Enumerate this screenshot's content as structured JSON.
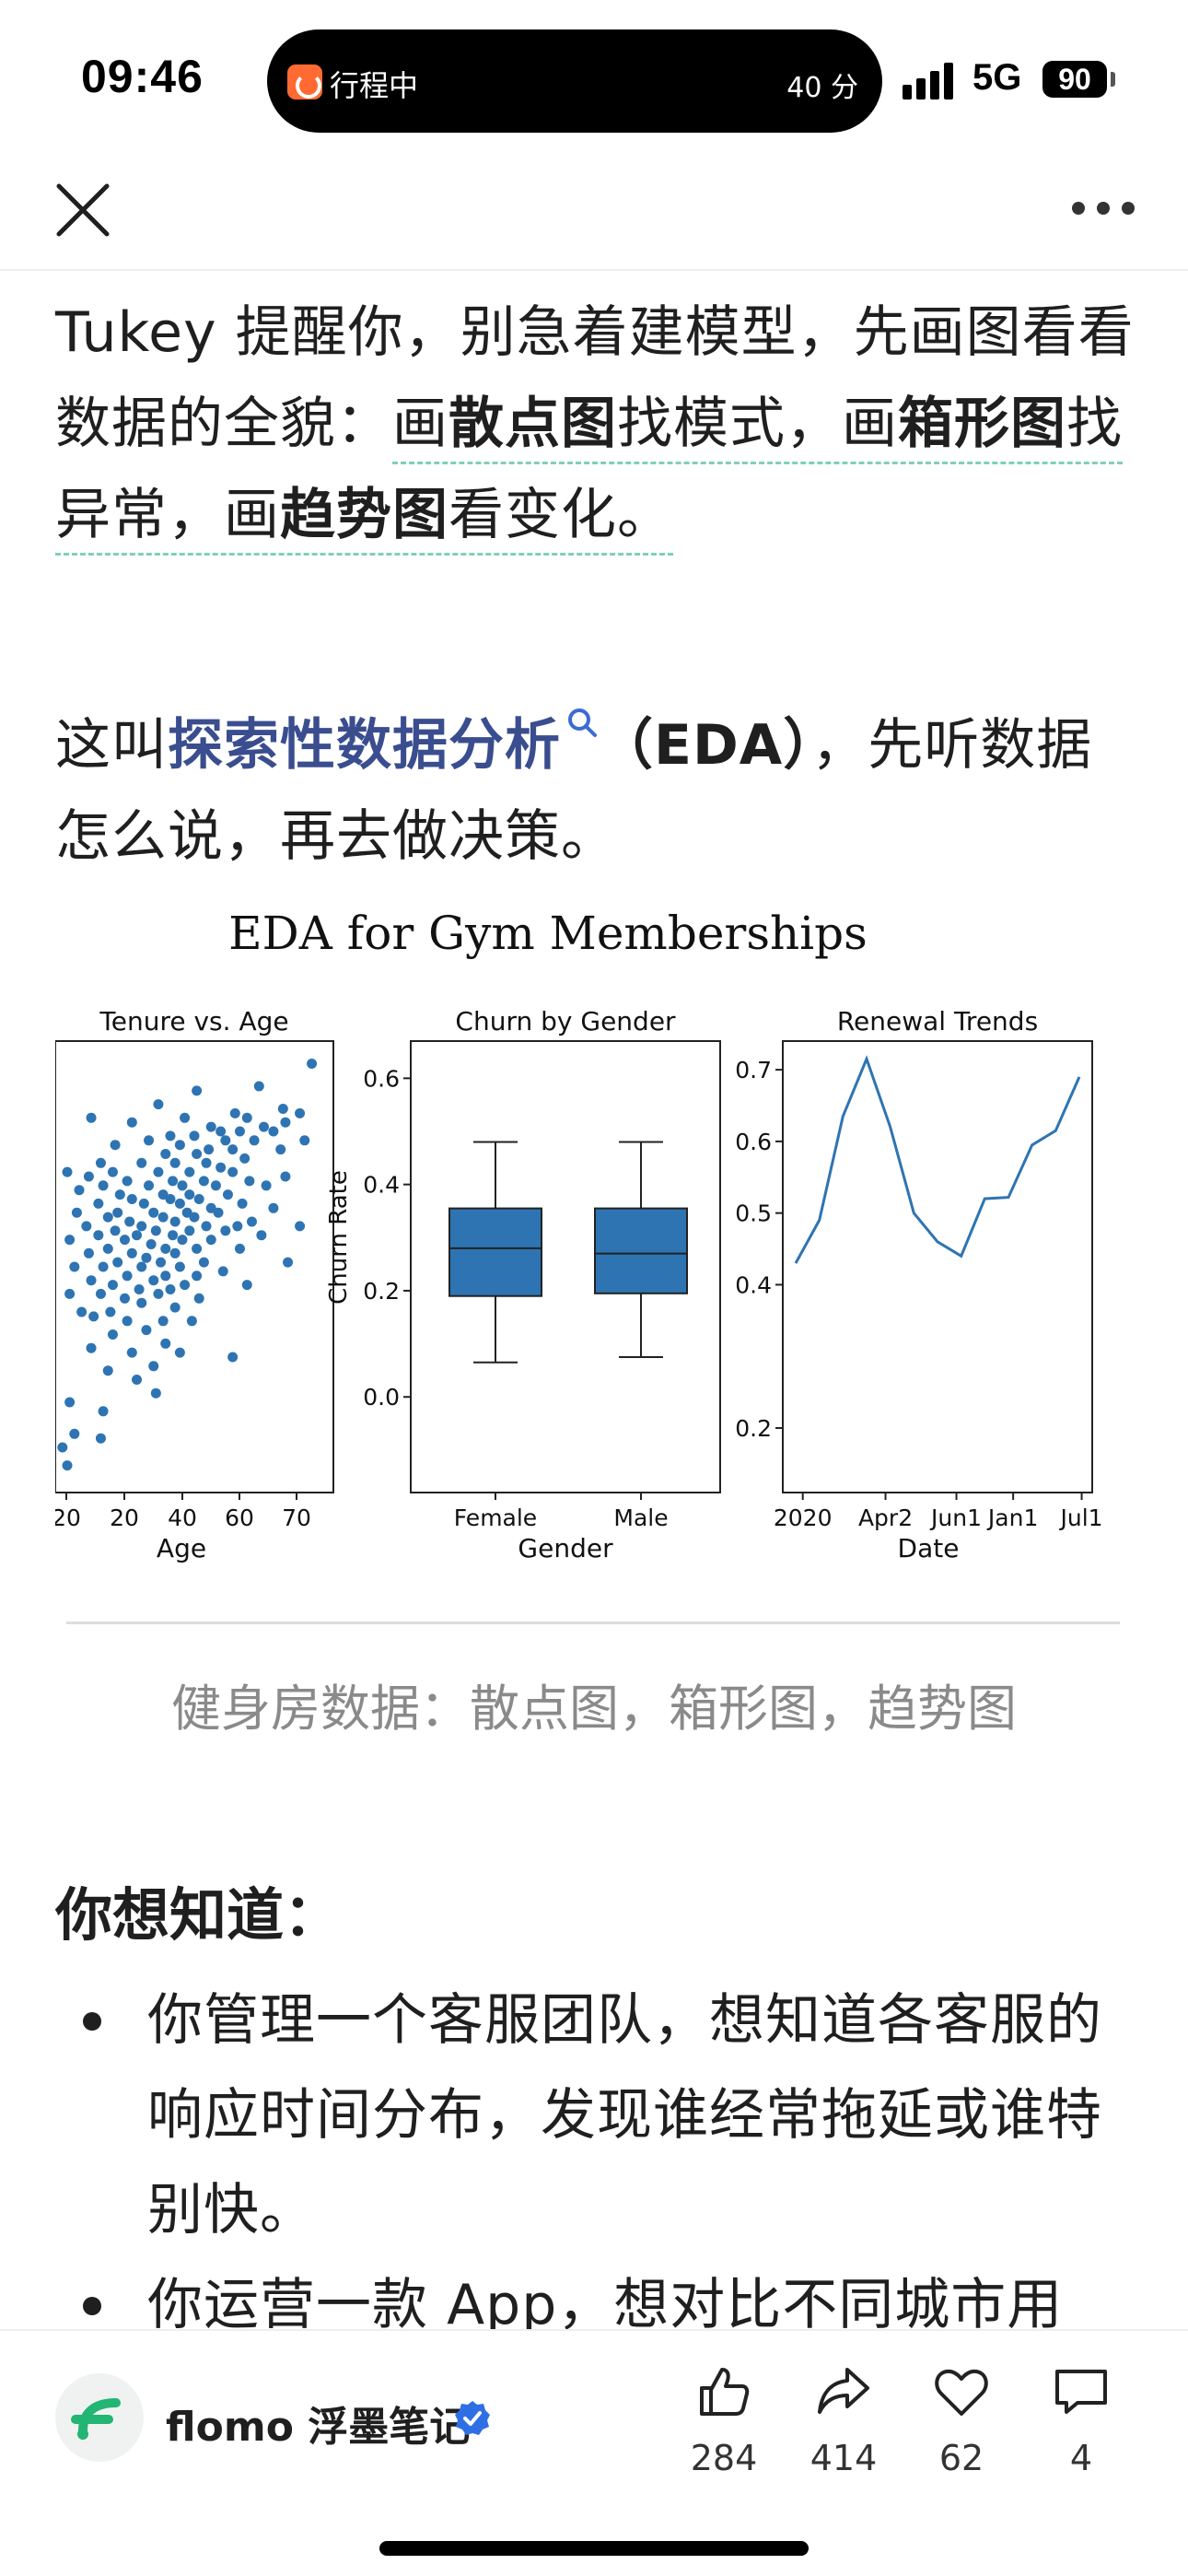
{
  "status_bar": {
    "time": "09:46",
    "island_label": "行程中",
    "island_eta": "40 分",
    "network": "5G",
    "battery": "90"
  },
  "icons": {
    "close": "close-icon",
    "more": "more-icon",
    "search": "search-icon",
    "like": "thumbs-up-icon",
    "share": "share-icon",
    "favorite": "heart-icon",
    "comment": "comment-icon",
    "verified": "verified-badge-icon",
    "brand_logo": "flomo-logo-icon"
  },
  "article": {
    "p1": {
      "t1": "Tukey 提醒你，别急着建模型，先画图看看数据的全貌：",
      "t2": "画",
      "b1": "散点图",
      "t3": "找模式，画",
      "b2": "箱形图",
      "t4": "找异常，画",
      "b3": "趋势图",
      "t5": "看变化。"
    },
    "p2": {
      "t1": "这叫",
      "link": "探索性数据分析",
      "b1": "（EDA）",
      "t2": "，先听数据怎么说，再去做决策。"
    },
    "caption": "健身房数据：散点图，箱形图，趋势图",
    "section_title": "你想知道：",
    "bullets": [
      "你管理一个客服团队，想知道各客服的响应时间分布，发现谁经常拖延或谁特别快。",
      "你运营一款 App，想对比不同城市用"
    ]
  },
  "chart_data": {
    "suptitle": "EDA for Gym Memberships",
    "color": "#2e74b2",
    "panels": [
      {
        "type": "scatter",
        "title": "Tenure vs. Age",
        "xlabel": "Age",
        "ylabel": "",
        "xticks": [
          "20",
          "20",
          "40",
          "60",
          "70"
        ],
        "xlim": [
          18,
          76
        ],
        "ylim": [
          0,
          10
        ],
        "points": [
          [
            71.5,
            9.5
          ],
          [
            60.5,
            9.0
          ],
          [
            47.5,
            8.9
          ],
          [
            39.5,
            8.6
          ],
          [
            65.5,
            8.5
          ],
          [
            69,
            8.4
          ],
          [
            55.5,
            8.4
          ],
          [
            58,
            8.3
          ],
          [
            25.5,
            8.3
          ],
          [
            45,
            8.3
          ],
          [
            66,
            8.2
          ],
          [
            34,
            8.2
          ],
          [
            50.5,
            8.1
          ],
          [
            61.5,
            8.1
          ],
          [
            52.5,
            8.0
          ],
          [
            56.5,
            8.0
          ],
          [
            63.5,
            8.0
          ],
          [
            42,
            7.9
          ],
          [
            47,
            7.9
          ],
          [
            37.5,
            7.8
          ],
          [
            53.5,
            7.8
          ],
          [
            59.5,
            7.8
          ],
          [
            70,
            7.8
          ],
          [
            30.5,
            7.7
          ],
          [
            44,
            7.7
          ],
          [
            50,
            7.6
          ],
          [
            55,
            7.6
          ],
          [
            65,
            7.6
          ],
          [
            41,
            7.5
          ],
          [
            47.5,
            7.5
          ],
          [
            57.5,
            7.4
          ],
          [
            27.5,
            7.3
          ],
          [
            36,
            7.3
          ],
          [
            43,
            7.3
          ],
          [
            49.5,
            7.3
          ],
          [
            52.5,
            7.2
          ],
          [
            20.5,
            7.1
          ],
          [
            30,
            7.1
          ],
          [
            39.5,
            7.1
          ],
          [
            46,
            7.1
          ],
          [
            55,
            7.1
          ],
          [
            66,
            7.0
          ],
          [
            25,
            7.0
          ],
          [
            33,
            6.9
          ],
          [
            42.5,
            6.9
          ],
          [
            49,
            6.9
          ],
          [
            58.5,
            6.9
          ],
          [
            28,
            6.8
          ],
          [
            37.5,
            6.8
          ],
          [
            44.5,
            6.8
          ],
          [
            51.5,
            6.8
          ],
          [
            62,
            6.8
          ],
          [
            23,
            6.7
          ],
          [
            31.5,
            6.6
          ],
          [
            40.5,
            6.6
          ],
          [
            46,
            6.6
          ],
          [
            54,
            6.6
          ],
          [
            34,
            6.5
          ],
          [
            42,
            6.5
          ],
          [
            48,
            6.5
          ],
          [
            57,
            6.4
          ],
          [
            27,
            6.4
          ],
          [
            36.5,
            6.4
          ],
          [
            44,
            6.4
          ],
          [
            50.5,
            6.3
          ],
          [
            63.5,
            6.3
          ],
          [
            22.5,
            6.2
          ],
          [
            31,
            6.2
          ],
          [
            38.5,
            6.2
          ],
          [
            45.5,
            6.2
          ],
          [
            52,
            6.2
          ],
          [
            29,
            6.1
          ],
          [
            40.5,
            6.1
          ],
          [
            47,
            6.1
          ],
          [
            59,
            6.0
          ],
          [
            33.5,
            6.0
          ],
          [
            43,
            6.0
          ],
          [
            56,
            5.9
          ],
          [
            24.5,
            5.9
          ],
          [
            36,
            5.9
          ],
          [
            49.5,
            5.9
          ],
          [
            69,
            5.9
          ],
          [
            30.5,
            5.8
          ],
          [
            39,
            5.8
          ],
          [
            46,
            5.8
          ],
          [
            53.5,
            5.8
          ],
          [
            27,
            5.7
          ],
          [
            35,
            5.7
          ],
          [
            42.5,
            5.7
          ],
          [
            61,
            5.7
          ],
          [
            21,
            5.6
          ],
          [
            32.5,
            5.6
          ],
          [
            44.5,
            5.6
          ],
          [
            50.5,
            5.6
          ],
          [
            38,
            5.5
          ],
          [
            29,
            5.4
          ],
          [
            41,
            5.4
          ],
          [
            47.5,
            5.4
          ],
          [
            56.5,
            5.4
          ],
          [
            25,
            5.3
          ],
          [
            34,
            5.3
          ],
          [
            43,
            5.3
          ],
          [
            37,
            5.2
          ],
          [
            31,
            5.1
          ],
          [
            40,
            5.1
          ],
          [
            49,
            5.1
          ],
          [
            66.5,
            5.1
          ],
          [
            22,
            5.0
          ],
          [
            28,
            5.0
          ],
          [
            36,
            5.0
          ],
          [
            44,
            5.0
          ],
          [
            53,
            4.9
          ],
          [
            33,
            4.8
          ],
          [
            41,
            4.8
          ],
          [
            47.5,
            4.8
          ],
          [
            25.5,
            4.7
          ],
          [
            38.5,
            4.7
          ],
          [
            30,
            4.6
          ],
          [
            45,
            4.6
          ],
          [
            58,
            4.6
          ],
          [
            35.5,
            4.5
          ],
          [
            42,
            4.5
          ],
          [
            21,
            4.4
          ],
          [
            27.5,
            4.4
          ],
          [
            39.5,
            4.4
          ],
          [
            32.5,
            4.3
          ],
          [
            48,
            4.3
          ],
          [
            36,
            4.2
          ],
          [
            43,
            4.1
          ],
          [
            23.5,
            4.0
          ],
          [
            29.5,
            4.0
          ],
          [
            26,
            3.9
          ],
          [
            33,
            3.8
          ],
          [
            40.5,
            3.8
          ],
          [
            46.5,
            3.8
          ],
          [
            37,
            3.6
          ],
          [
            30,
            3.5
          ],
          [
            41,
            3.3
          ],
          [
            25.5,
            3.2
          ],
          [
            34,
            3.1
          ],
          [
            44,
            3.1
          ],
          [
            55,
            3.0
          ],
          [
            38.5,
            2.8
          ],
          [
            29,
            2.7
          ],
          [
            35,
            2.5
          ],
          [
            39,
            2.2
          ],
          [
            21,
            2.0
          ],
          [
            28,
            1.8
          ],
          [
            22,
            1.3
          ],
          [
            19.5,
            1.0
          ],
          [
            27.5,
            1.2
          ],
          [
            20.5,
            0.6
          ]
        ]
      },
      {
        "type": "box",
        "title": "Churn by Gender",
        "xlabel": "Gender",
        "ylabel": "Churn Rate",
        "categories": [
          "Female",
          "Male"
        ],
        "ylim": [
          -0.18,
          0.67
        ],
        "yticks": [
          0.0,
          0.2,
          0.4,
          0.6
        ],
        "ytick_labels": [
          "0.0",
          "0.2",
          "0.4",
          "0.6"
        ],
        "boxes": [
          {
            "whisker_low": 0.065,
            "q1": 0.19,
            "median": 0.28,
            "q3": 0.355,
            "whisker_high": 0.48
          },
          {
            "whisker_low": 0.075,
            "q1": 0.195,
            "median": 0.27,
            "q3": 0.355,
            "whisker_high": 0.48
          }
        ]
      },
      {
        "type": "line",
        "title": "Renewal Trends",
        "xlabel": "Date",
        "ylabel": "",
        "xticks": [
          "2020",
          "Apr2",
          "Jun1",
          "Jan1",
          "Jul1"
        ],
        "xtick_index": [
          0.3,
          3.8,
          6.8,
          9.2,
          12.1
        ],
        "ylim": [
          0.11,
          0.74
        ],
        "yticks": [
          0.2,
          0.4,
          0.5,
          0.6,
          0.7
        ],
        "ytick_labels": [
          "0.2",
          "0.4",
          "0.5",
          "0.6",
          "0.7"
        ],
        "values": [
          0.43,
          0.49,
          0.635,
          0.715,
          0.62,
          0.5,
          0.46,
          0.44,
          0.52,
          0.522,
          0.595,
          0.615,
          0.69
        ]
      }
    ]
  },
  "bottom_bar": {
    "author": "flomo 浮墨笔记",
    "likes": "284",
    "shares": "414",
    "favorites": "62",
    "comments": "4"
  }
}
